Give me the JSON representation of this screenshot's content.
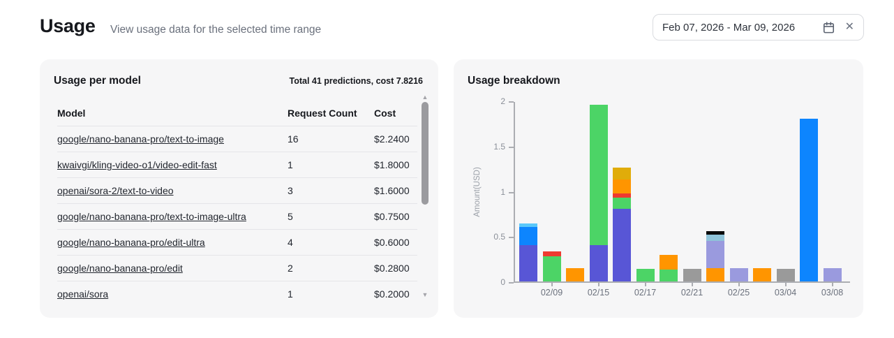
{
  "header": {
    "title": "Usage",
    "subtitle": "View usage data for the selected time range",
    "date_range": "Feb 07, 2026 - Mar 09, 2026"
  },
  "usage_table": {
    "title": "Usage per model",
    "summary": "Total 41 predictions, cost 7.8216",
    "columns": [
      "Model",
      "Request Count",
      "Cost"
    ],
    "rows": [
      {
        "model": "google/nano-banana-pro/text-to-image",
        "request_count": "16",
        "cost": "$2.2400"
      },
      {
        "model": "kwaivgi/kling-video-o1/video-edit-fast",
        "request_count": "1",
        "cost": "$1.8000"
      },
      {
        "model": "openai/sora-2/text-to-video",
        "request_count": "3",
        "cost": "$1.6000"
      },
      {
        "model": "google/nano-banana-pro/text-to-image-ultra",
        "request_count": "5",
        "cost": "$0.7500"
      },
      {
        "model": "google/nano-banana-pro/edit-ultra",
        "request_count": "4",
        "cost": "$0.6000"
      },
      {
        "model": "google/nano-banana-pro/edit",
        "request_count": "2",
        "cost": "$0.2800"
      },
      {
        "model": "openai/sora",
        "request_count": "1",
        "cost": "$0.2000"
      }
    ]
  },
  "icons": {
    "scroll_up": "▲",
    "scroll_down": "▼",
    "clear": "✕"
  },
  "chart_data": {
    "type": "bar",
    "stacked": true,
    "title": "Usage breakdown",
    "ylabel": "Amount(USD)",
    "xlabel": "",
    "ylim": [
      0,
      2
    ],
    "yticks": [
      0,
      0.5,
      1,
      1.5,
      2
    ],
    "grid": false,
    "legend": false,
    "x_axis_labels_shown": [
      "02/09",
      "02/15",
      "02/17",
      "02/21",
      "02/25",
      "03/04",
      "03/08"
    ],
    "bars": [
      {
        "label": "",
        "total": 0.64,
        "segments": [
          {
            "color": "#5856d6",
            "value": 0.4
          },
          {
            "color": "#0d85fe",
            "value": 0.2
          },
          {
            "color": "#5ac8fa",
            "value": 0.04
          }
        ]
      },
      {
        "label": "02/09",
        "total": 0.33,
        "segments": [
          {
            "color": "#4cd466",
            "value": 0.28
          },
          {
            "color": "#ee3a30",
            "value": 0.05
          }
        ]
      },
      {
        "label": "",
        "total": 0.15,
        "segments": [
          {
            "color": "#ff9500",
            "value": 0.15
          }
        ]
      },
      {
        "label": "02/15",
        "total": 1.95,
        "segments": [
          {
            "color": "#5856d6",
            "value": 0.4
          },
          {
            "color": "#4cd466",
            "value": 1.55
          }
        ]
      },
      {
        "label": "",
        "total": 1.26,
        "segments": [
          {
            "color": "#5856d6",
            "value": 0.8
          },
          {
            "color": "#4cd466",
            "value": 0.13
          },
          {
            "color": "#ee3a30",
            "value": 0.04
          },
          {
            "color": "#ff9500",
            "value": 0.16
          },
          {
            "color": "#e0ac0a",
            "value": 0.13
          }
        ]
      },
      {
        "label": "02/17",
        "total": 0.14,
        "segments": [
          {
            "color": "#4cd466",
            "value": 0.14
          }
        ]
      },
      {
        "label": "",
        "total": 0.29,
        "segments": [
          {
            "color": "#4cd466",
            "value": 0.13
          },
          {
            "color": "#ff9500",
            "value": 0.16
          }
        ]
      },
      {
        "label": "02/21",
        "total": 0.14,
        "segments": [
          {
            "color": "#9a9a9a",
            "value": 0.14
          }
        ]
      },
      {
        "label": "",
        "total": 0.56,
        "segments": [
          {
            "color": "#ff9500",
            "value": 0.15
          },
          {
            "color": "#9a9ade",
            "value": 0.3
          },
          {
            "color": "#8fc3d9",
            "value": 0.07
          },
          {
            "color": "#0a0a0a",
            "value": 0.04
          }
        ]
      },
      {
        "label": "02/25",
        "total": 0.15,
        "segments": [
          {
            "color": "#9a9ade",
            "value": 0.15
          }
        ]
      },
      {
        "label": "",
        "total": 0.15,
        "segments": [
          {
            "color": "#ff9500",
            "value": 0.15
          }
        ]
      },
      {
        "label": "03/04",
        "total": 0.14,
        "segments": [
          {
            "color": "#9a9a9a",
            "value": 0.14
          }
        ]
      },
      {
        "label": "",
        "total": 1.8,
        "segments": [
          {
            "color": "#0d85fe",
            "value": 1.8
          }
        ]
      },
      {
        "label": "03/08",
        "total": 0.15,
        "segments": [
          {
            "color": "#9a9ade",
            "value": 0.15
          }
        ]
      }
    ]
  }
}
